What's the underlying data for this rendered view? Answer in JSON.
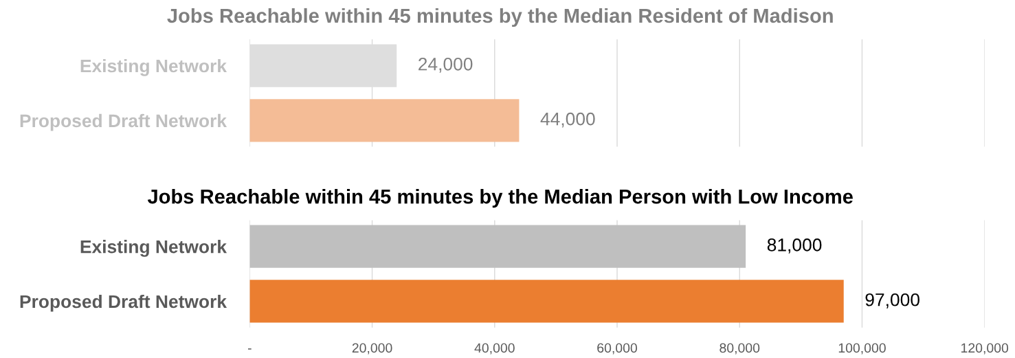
{
  "chart_data": [
    {
      "type": "bar",
      "orientation": "horizontal",
      "title": "Jobs Reachable within 45 minutes by the Median Resident of Madison",
      "categories": [
        "Existing Network",
        "Proposed Draft Network"
      ],
      "values": [
        24000,
        44000
      ],
      "colors": [
        "#dedede",
        "#f4bc96"
      ],
      "value_labels": [
        "24,000",
        "44,000"
      ],
      "xlim": [
        0,
        120000
      ],
      "xticks": [
        {
          "value": 0,
          "label": null
        },
        {
          "value": 20000,
          "label": null
        },
        {
          "value": 40000,
          "label": null
        },
        {
          "value": 60000,
          "label": null
        },
        {
          "value": 80000,
          "label": null
        },
        {
          "value": 100000,
          "label": null
        },
        {
          "value": 120000,
          "label": null
        }
      ],
      "grid": "x"
    },
    {
      "type": "bar",
      "orientation": "horizontal",
      "title": "Jobs Reachable within 45 minutes by the Median Person with Low Income",
      "categories": [
        "Existing Network",
        "Proposed Draft Network"
      ],
      "values": [
        81000,
        97000
      ],
      "colors": [
        "#bfbfbf",
        "#eb7e30"
      ],
      "value_labels": [
        "81,000",
        "97,000"
      ],
      "xlim": [
        0,
        120000
      ],
      "xticks": [
        {
          "value": 0,
          "label": "-"
        },
        {
          "value": 20000,
          "label": "20,000"
        },
        {
          "value": 40000,
          "label": "40,000"
        },
        {
          "value": 60000,
          "label": "60,000"
        },
        {
          "value": 80000,
          "label": "80,000"
        },
        {
          "value": 100000,
          "label": "100,000"
        },
        {
          "value": 120000,
          "label": "120,000"
        }
      ],
      "grid": "x"
    }
  ]
}
